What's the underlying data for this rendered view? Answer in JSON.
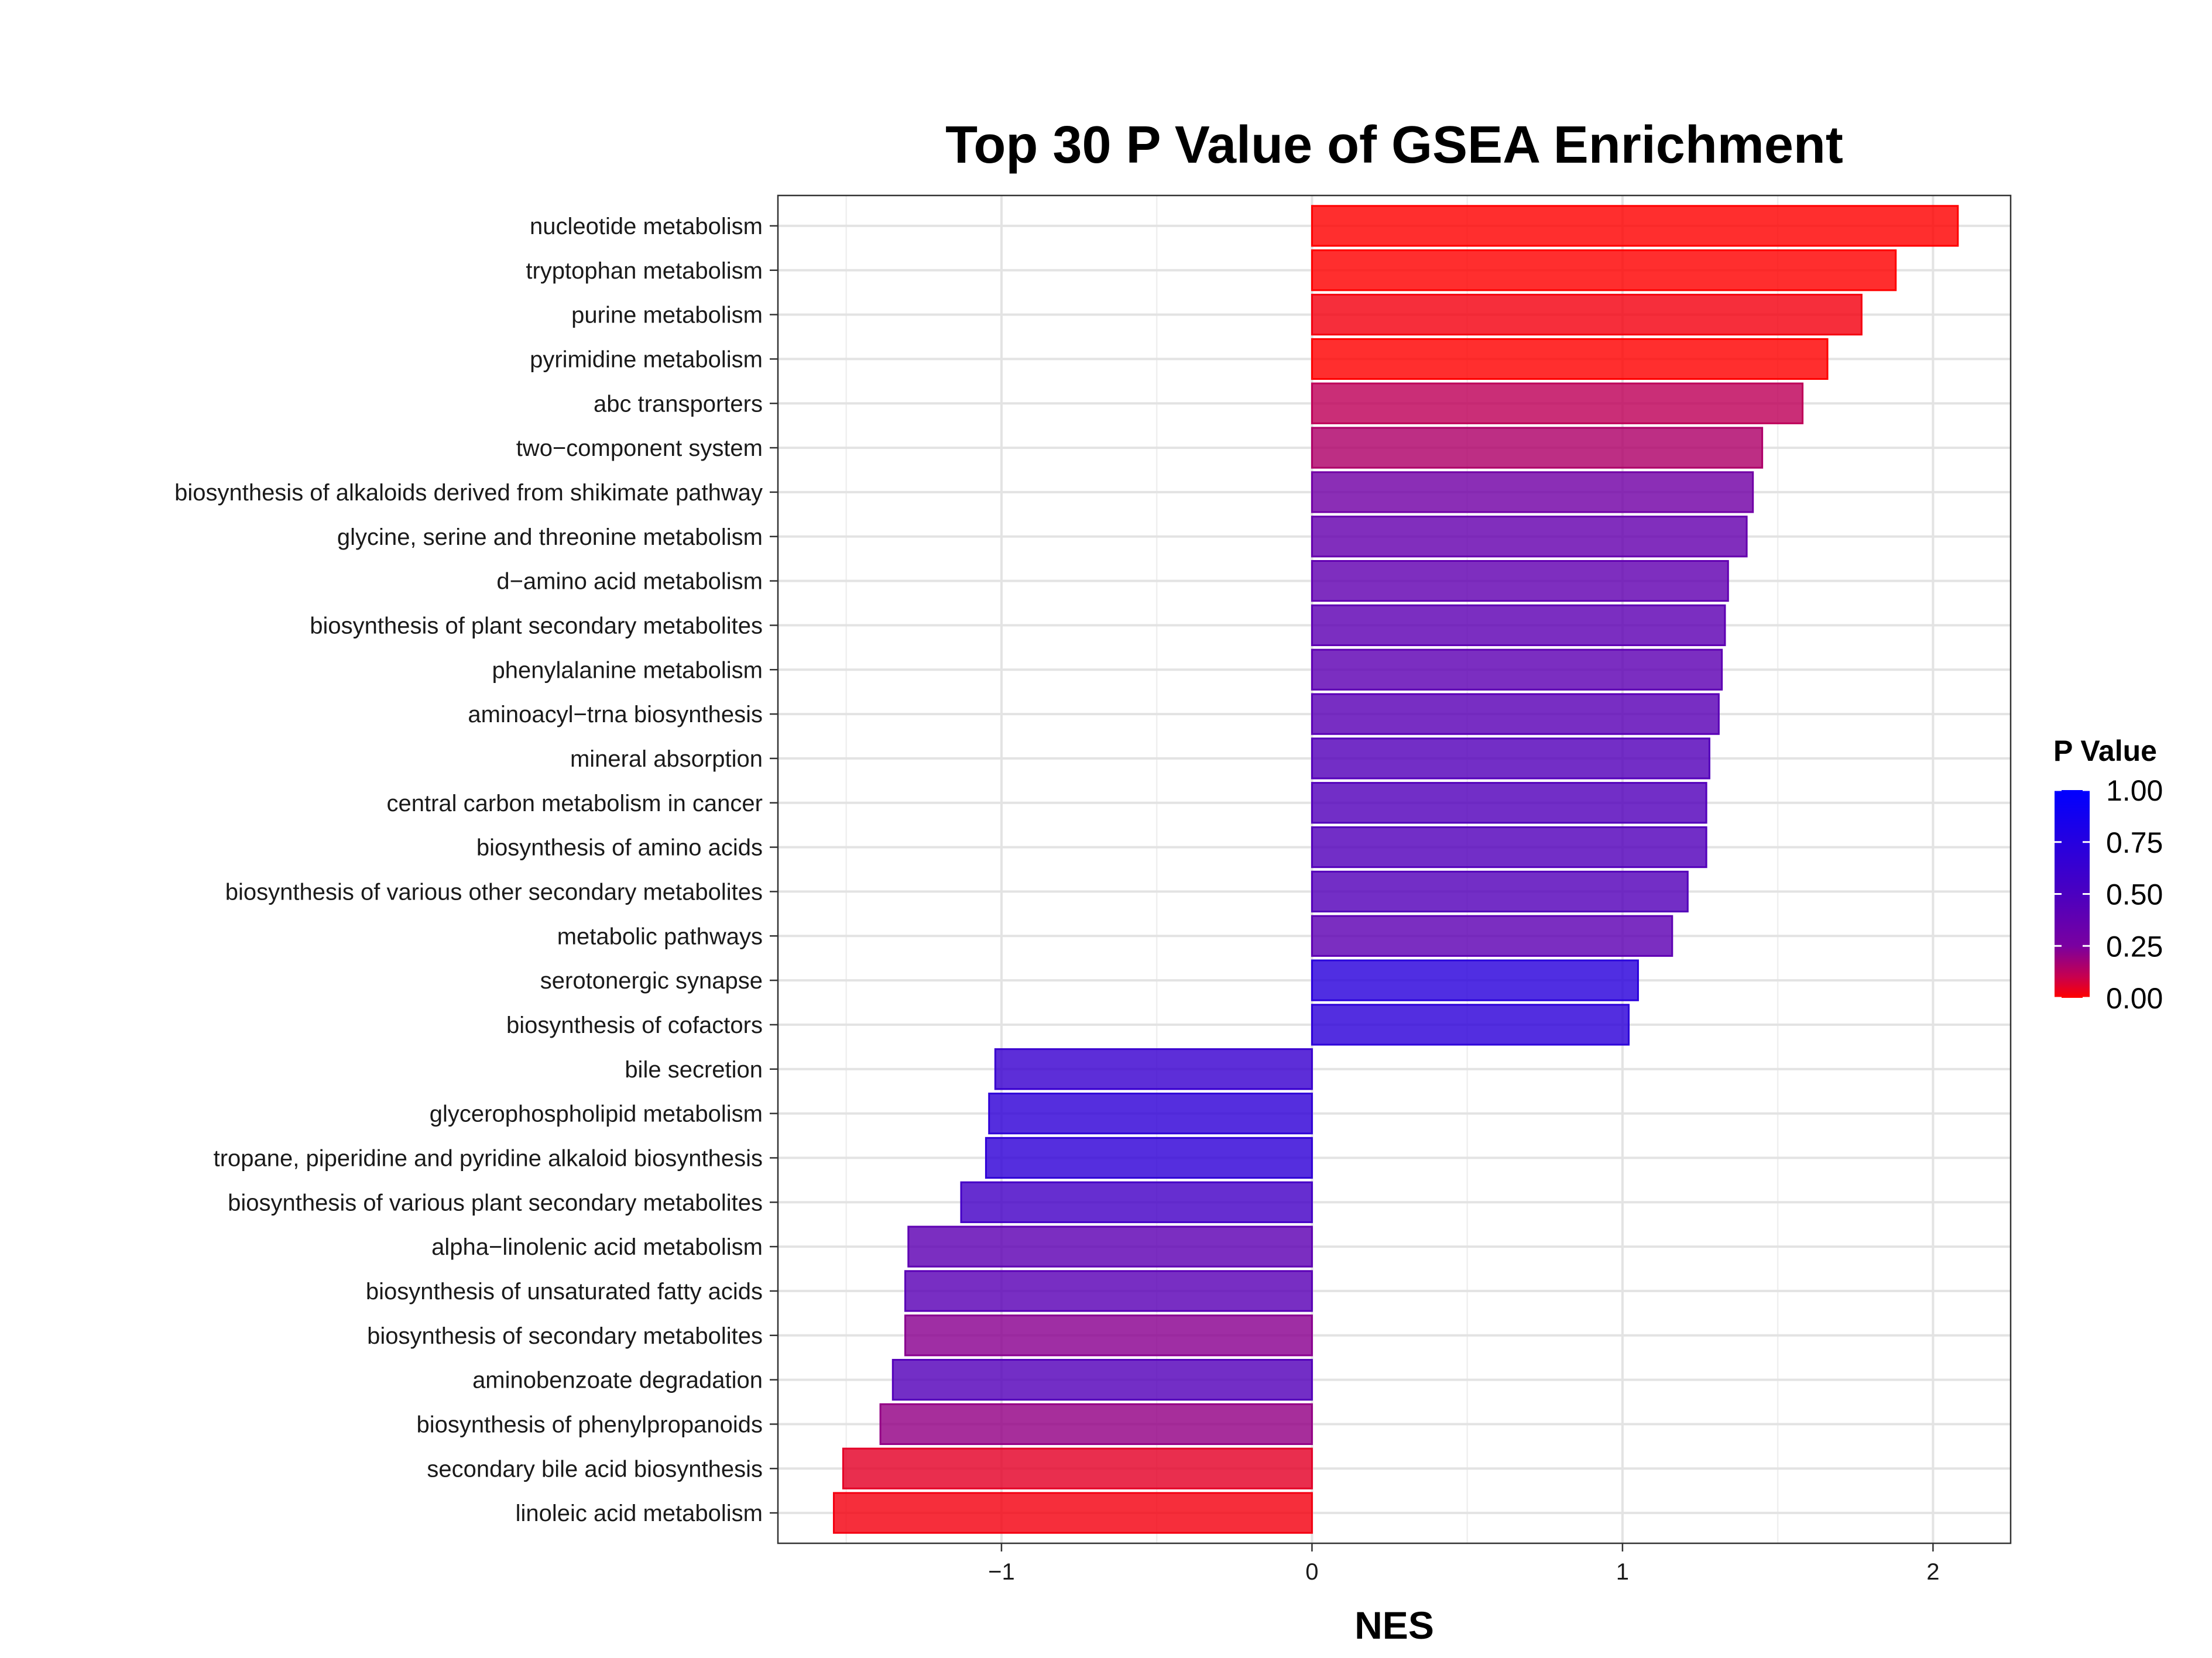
{
  "chart_data": {
    "type": "bar",
    "orientation": "horizontal",
    "title": "Top 30 P Value of GSEA Enrichment",
    "xlabel": "NES",
    "ylabel": "",
    "xlim": [
      -1.72,
      2.25
    ],
    "xticks": [
      -1,
      0,
      1,
      2
    ],
    "xtick_labels": [
      "−1",
      "0",
      "1",
      "2"
    ],
    "grid": true,
    "categories": [
      "nucleotide metabolism",
      "tryptophan metabolism",
      "purine metabolism",
      "pyrimidine metabolism",
      "abc transporters",
      "two−component system",
      "biosynthesis of alkaloids derived from shikimate pathway",
      "glycine, serine and threonine metabolism",
      "d−amino acid metabolism",
      "biosynthesis of plant secondary metabolites",
      "phenylalanine metabolism",
      "aminoacyl−trna biosynthesis",
      "mineral absorption",
      "central carbon metabolism in cancer",
      "biosynthesis of amino acids",
      "biosynthesis of various other secondary metabolites",
      "metabolic pathways",
      "serotonergic synapse",
      "biosynthesis of cofactors",
      "bile secretion",
      "glycerophospholipid metabolism",
      "tropane, piperidine and pyridine alkaloid biosynthesis",
      "biosynthesis of various plant secondary metabolites",
      "alpha−linolenic acid metabolism",
      "biosynthesis of unsaturated fatty acids",
      "biosynthesis of secondary metabolites",
      "aminobenzoate degradation",
      "biosynthesis of phenylpropanoids",
      "secondary bile acid biosynthesis",
      "linoleic acid metabolism"
    ],
    "values": [
      2.08,
      1.88,
      1.77,
      1.66,
      1.58,
      1.45,
      1.42,
      1.4,
      1.34,
      1.33,
      1.32,
      1.31,
      1.28,
      1.27,
      1.27,
      1.21,
      1.16,
      1.05,
      1.02,
      -1.02,
      -1.04,
      -1.05,
      -1.13,
      -1.3,
      -1.31,
      -1.31,
      -1.35,
      -1.39,
      -1.51,
      -1.54
    ],
    "p_values": [
      0.0,
      0.0,
      0.02,
      0.0,
      0.12,
      0.15,
      0.3,
      0.36,
      0.38,
      0.4,
      0.4,
      0.42,
      0.45,
      0.46,
      0.46,
      0.45,
      0.4,
      0.72,
      0.7,
      0.62,
      0.68,
      0.68,
      0.55,
      0.4,
      0.42,
      0.22,
      0.45,
      0.2,
      0.05,
      0.02
    ],
    "color_scale": {
      "title": "P Value",
      "min": 0.0,
      "max": 1.0,
      "low_color": "#ff0000",
      "high_color": "#0000ff",
      "ticks": [
        "0.00",
        "0.25",
        "0.50",
        "0.75",
        "1.00"
      ],
      "legend_position": "right"
    }
  }
}
